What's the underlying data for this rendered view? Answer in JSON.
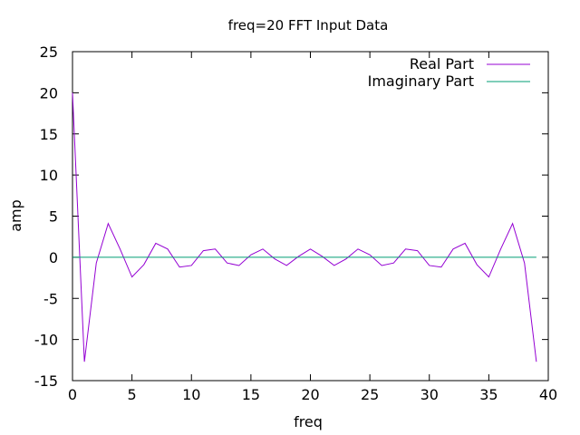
{
  "chart_data": {
    "type": "line",
    "title": "freq=20 FFT Input Data",
    "xlabel": "freq",
    "ylabel": "amp",
    "xlim": [
      0,
      40
    ],
    "ylim": [
      -15,
      25
    ],
    "xticks": [
      0,
      5,
      10,
      15,
      20,
      25,
      30,
      35,
      40
    ],
    "yticks": [
      -15,
      -10,
      -5,
      0,
      5,
      10,
      15,
      20,
      25
    ],
    "grid": false,
    "legend_position": "top-right",
    "x": [
      0,
      1,
      2,
      3,
      4,
      5,
      6,
      7,
      8,
      9,
      10,
      11,
      12,
      13,
      14,
      15,
      16,
      17,
      18,
      19,
      20,
      21,
      22,
      23,
      24,
      25,
      26,
      27,
      28,
      29,
      30,
      31,
      32,
      33,
      34,
      35,
      36,
      37,
      38,
      39
    ],
    "series": [
      {
        "name": "Real Part",
        "color": "#9400d3",
        "values": [
          20,
          -12.7,
          -0.7,
          4.1,
          1.0,
          -2.4,
          -0.9,
          1.7,
          1.0,
          -1.2,
          -1.0,
          0.8,
          1.0,
          -0.7,
          -1.0,
          0.3,
          1.0,
          -0.2,
          -1.0,
          0.1,
          1.0,
          0.1,
          -1.0,
          -0.2,
          1.0,
          0.3,
          -1.0,
          -0.7,
          1.0,
          0.8,
          -1.0,
          -1.2,
          1.0,
          1.7,
          -0.9,
          -2.4,
          1.0,
          4.1,
          -0.7,
          -12.7
        ]
      },
      {
        "name": "Imaginary Part",
        "color": "#009e73",
        "values": [
          0,
          0,
          0,
          0,
          0,
          0,
          0,
          0,
          0,
          0,
          0,
          0,
          0,
          0,
          0,
          0,
          0,
          0,
          0,
          0,
          0,
          0,
          0,
          0,
          0,
          0,
          0,
          0,
          0,
          0,
          0,
          0,
          0,
          0,
          0,
          0,
          0,
          0,
          0,
          0
        ]
      }
    ]
  }
}
